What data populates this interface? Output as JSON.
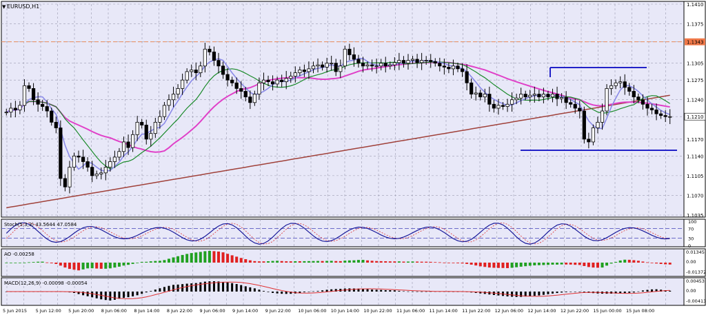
{
  "colors": {
    "background": "#e8e8f8",
    "grid": "#9a9ab0",
    "axis_bg": "#ffffff",
    "candle": "#000000",
    "ma_slow": "#a0413a",
    "ma_pink": "#e040c8",
    "ma_green": "#1a8a2a",
    "ma_blue": "#8a8ae8",
    "level_line": "#e88a5a",
    "box_line": "#2020c8",
    "stoch_main": "#1a1a9a",
    "stoch_signal": "#e03030",
    "stoch_level": "#6a6ac8",
    "ao_up": "#20a020",
    "ao_down": "#e02020",
    "macd_hist": "#000000",
    "macd_signal": "#e03030",
    "price_tag_bg": "#f07848",
    "price_tag_current": "#c0c0c0"
  },
  "chart_data": [
    {
      "type": "candlestick",
      "title": "EURUSD,H1",
      "y_ticks": [
        "1.1410",
        "1.1375",
        "1.1343",
        "1.1305",
        "1.1275",
        "1.1240",
        "1.1210",
        "1.1170",
        "1.1140",
        "1.1105",
        "1.1070",
        "1.1035"
      ],
      "ylim": [
        1.1035,
        1.141
      ],
      "highlighted_level": "1.1343",
      "current_price": "1.1210",
      "x_labels": [
        "5 Jun 2015",
        "5 Jun 12:00",
        "5 Jun 20:00",
        "8 Jun 06:00",
        "8 Jun 14:00",
        "8 Jun 22:00",
        "9 Jun 06:00",
        "9 Jun 14:00",
        "9 Jun 22:00",
        "10 Jun 06:00",
        "10 Jun 14:00",
        "10 Jun 22:00",
        "11 Jun 06:00",
        "11 Jun 14:00",
        "11 Jun 22:00",
        "12 Jun 06:00",
        "12 Jun 14:00",
        "12 Jun 22:00",
        "15 Jun 00:00",
        "15 Jun 08:00"
      ],
      "close": [
        1.1218,
        1.1225,
        1.1222,
        1.123,
        1.1265,
        1.126,
        1.124,
        1.1232,
        1.1228,
        1.122,
        1.12,
        1.119,
        1.11,
        1.1085,
        1.112,
        1.114,
        1.1138,
        1.113,
        1.112,
        1.1105,
        1.1108,
        1.111,
        1.112,
        1.113,
        1.1138,
        1.1148,
        1.1165,
        1.1155,
        1.1178,
        1.12,
        1.1195,
        1.117,
        1.118,
        1.12,
        1.121,
        1.123,
        1.124,
        1.125,
        1.126,
        1.1275,
        1.129,
        1.1293,
        1.1288,
        1.13,
        1.133,
        1.1325,
        1.131,
        1.13,
        1.1285,
        1.1275,
        1.127,
        1.126,
        1.1255,
        1.1245,
        1.1235,
        1.125,
        1.127,
        1.1275,
        1.1272,
        1.1268,
        1.1275,
        1.1272,
        1.1278,
        1.1282,
        1.1288,
        1.1293,
        1.129,
        1.1295,
        1.13,
        1.1302,
        1.1298,
        1.1305,
        1.1305,
        1.129,
        1.13,
        1.133,
        1.132,
        1.1312,
        1.1305,
        1.13,
        1.1302,
        1.13,
        1.13,
        1.1305,
        1.13,
        1.1302,
        1.1306,
        1.131,
        1.1305,
        1.131,
        1.1312,
        1.1306,
        1.131,
        1.131,
        1.1308,
        1.1305,
        1.13,
        1.1298,
        1.1295,
        1.13,
        1.1295,
        1.129,
        1.127,
        1.125,
        1.1252,
        1.1245,
        1.125,
        1.1232,
        1.1225,
        1.123,
        1.1228,
        1.1232,
        1.124,
        1.1243,
        1.125,
        1.1245,
        1.1248,
        1.125,
        1.1245,
        1.125,
        1.1245,
        1.125,
        1.1242,
        1.1244,
        1.1235,
        1.1232,
        1.1225,
        1.122,
        1.117,
        1.1165,
        1.119,
        1.12,
        1.122,
        1.126,
        1.1265,
        1.127,
        1.1272,
        1.1262,
        1.1255,
        1.1245,
        1.124,
        1.1232,
        1.1225,
        1.1222,
        1.1215,
        1.1212,
        1.121,
        1.121
      ],
      "ohlc_note": "price series reconstructed approximately",
      "indicators": [
        "Moving averages (slow, pink, green, blue)",
        "Stochastic",
        "AO",
        "MACD"
      ]
    },
    {
      "type": "line",
      "title": "Stoch(5,3,3) 43.5644 47.0584",
      "levels": [
        "100",
        "70",
        "30",
        "0"
      ],
      "ylim": [
        0,
        100
      ]
    },
    {
      "type": "bar",
      "title": "AO -0.00258",
      "y_ticks": [
        "0.01345",
        "0.00",
        "-0.01372"
      ],
      "ylim": [
        -0.01372,
        0.01345
      ]
    },
    {
      "type": "bar",
      "title": "MACD(12,26,9) -0.00098 -0.00054",
      "y_ticks": [
        "0.00453",
        "0.00",
        "-0.00413"
      ],
      "ylim": [
        -0.00413,
        0.00453
      ]
    }
  ]
}
